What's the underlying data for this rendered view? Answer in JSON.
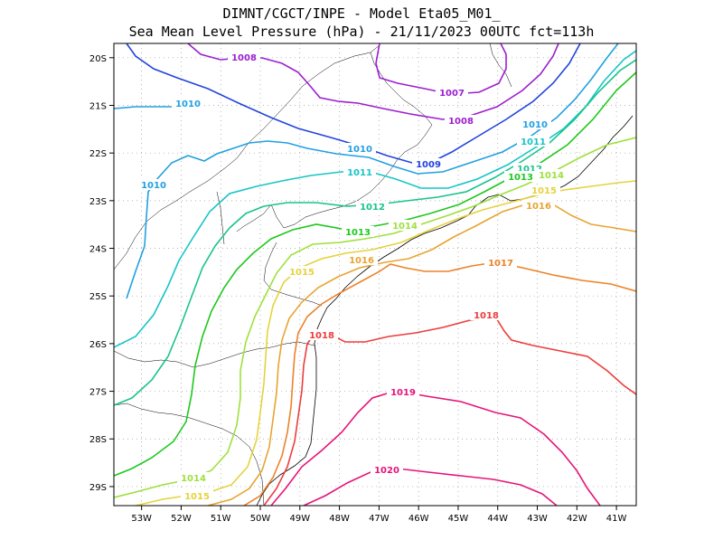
{
  "title": {
    "line1": "DIMNT/CGCT/INPE -  Model Eta05_M01_",
    "line2": "Sea Mean Level Pressure (hPa) - 21/11/2023 00UTC fct=113h"
  },
  "axes": {
    "lat_labels": [
      "20S",
      "21S",
      "22S",
      "23S",
      "24S",
      "25S",
      "26S",
      "27S",
      "28S",
      "29S"
    ],
    "lon_labels": [
      "53W",
      "52W",
      "51W",
      "50W",
      "49W",
      "48W",
      "47W",
      "46W",
      "45W",
      "44W",
      "43W",
      "42W",
      "41W"
    ]
  },
  "chart_data": {
    "type": "contour",
    "title": "Sea Mean Level Pressure (hPa) - 21/11/2023 00UTC fct=113h",
    "units": "hPa",
    "lon_range": [
      -53.7,
      -40.5
    ],
    "lat_range": [
      -29.4,
      -19.7
    ],
    "grid": true,
    "levels": [
      {
        "value": 1007,
        "color": "#9b1fd0",
        "label": "1007"
      },
      {
        "value": 1008,
        "color": "#9b1fd0",
        "label": "1008"
      },
      {
        "value": 1009,
        "color": "#2244dd",
        "label": "1009"
      },
      {
        "value": 1010,
        "color": "#22a0e0",
        "label": "1010"
      },
      {
        "value": 1011,
        "color": "#18c4c8",
        "label": "1011"
      },
      {
        "value": 1012,
        "color": "#18c48a",
        "label": "1012"
      },
      {
        "value": 1013,
        "color": "#1ec81e",
        "label": "1013"
      },
      {
        "value": 1014,
        "color": "#9ee03c",
        "label": "1014"
      },
      {
        "value": 1015,
        "color": "#e6d23c",
        "label": "1015"
      },
      {
        "value": 1016,
        "color": "#e6a532",
        "label": "1016"
      },
      {
        "value": 1017,
        "color": "#ec8228",
        "label": "1017"
      },
      {
        "value": 1018,
        "color": "#ee3c3c",
        "label": "1018"
      },
      {
        "value": 1019,
        "color": "#e6147a",
        "label": "1019"
      },
      {
        "value": 1020,
        "color": "#e6147a",
        "label": "1020"
      }
    ]
  }
}
